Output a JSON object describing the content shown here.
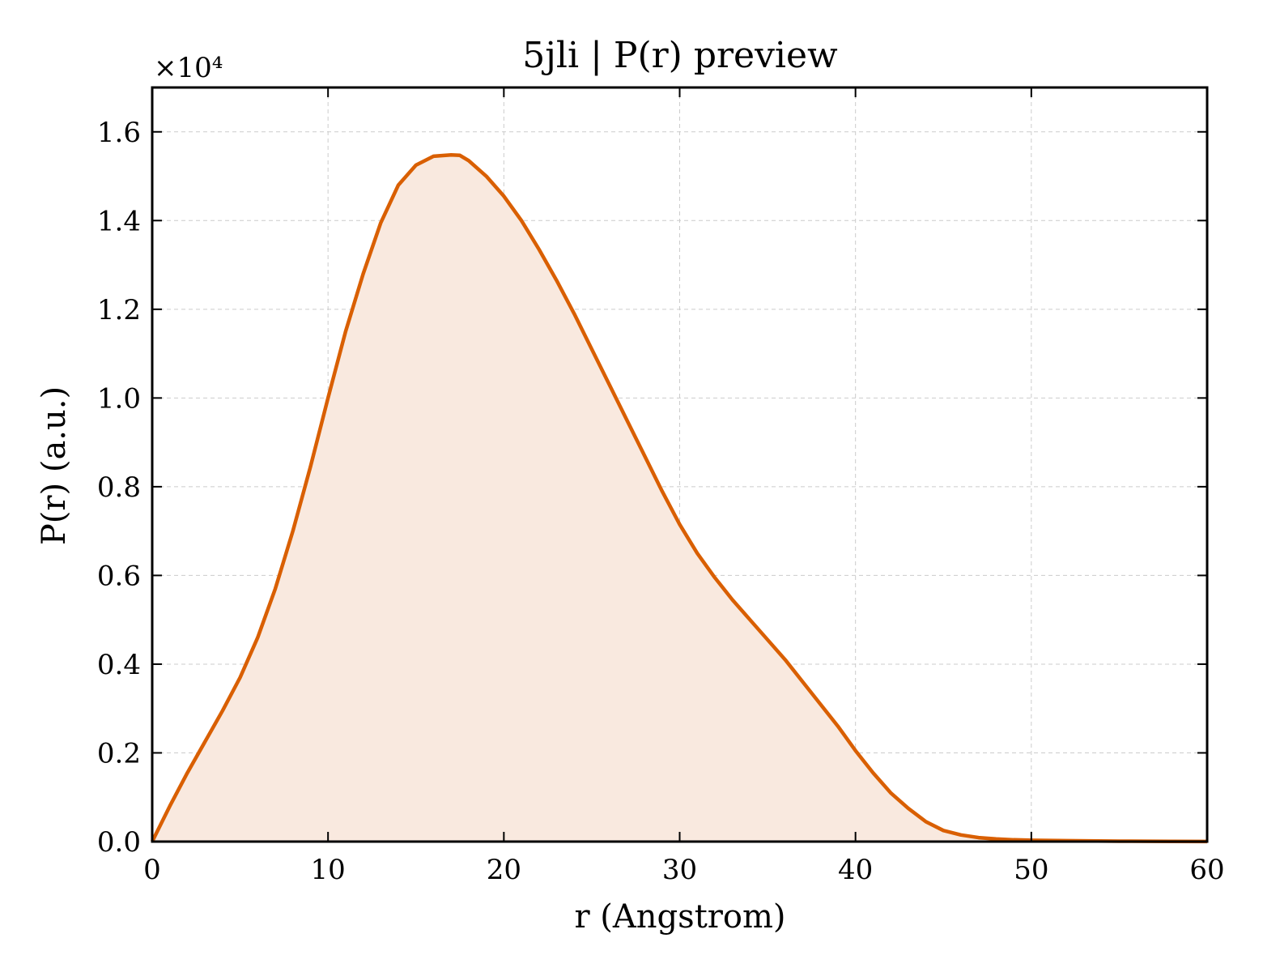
{
  "chart_data": {
    "type": "area",
    "title": "5jli | P(r) preview",
    "xlabel": "r (Angstrom)",
    "ylabel": "P(r) (a.u.)",
    "y_scale_label": "×10⁴",
    "xlim": [
      0,
      60
    ],
    "ylim": [
      0,
      1.7
    ],
    "x_ticks": [
      0,
      10,
      20,
      30,
      40,
      50,
      60
    ],
    "x_tick_labels": [
      "0",
      "10",
      "20",
      "30",
      "40",
      "50",
      "60"
    ],
    "y_ticks": [
      0.0,
      0.2,
      0.4,
      0.6,
      0.8,
      1.0,
      1.2,
      1.4,
      1.6
    ],
    "y_tick_labels": [
      "0.0",
      "0.2",
      "0.4",
      "0.6",
      "0.8",
      "1.0",
      "1.2",
      "1.4",
      "1.6"
    ],
    "grid": true,
    "line_color": "#d95f02",
    "fill_color": "#f9e9df",
    "series": [
      {
        "x": [
          0,
          1,
          2,
          3,
          4,
          5,
          6,
          7,
          8,
          9,
          10,
          11,
          12,
          13,
          14,
          15,
          16,
          17,
          17.5,
          18,
          19,
          20,
          21,
          22,
          23,
          24,
          25,
          26,
          27,
          28,
          29,
          30,
          31,
          32,
          33,
          34,
          35,
          36,
          37,
          38,
          39,
          40,
          41,
          42,
          43,
          44,
          45,
          46,
          47,
          48,
          49,
          50,
          52,
          55,
          58,
          60
        ],
        "y": [
          0.0,
          0.08,
          0.155,
          0.225,
          0.295,
          0.37,
          0.46,
          0.57,
          0.7,
          0.845,
          1.0,
          1.15,
          1.28,
          1.395,
          1.48,
          1.525,
          1.545,
          1.548,
          1.547,
          1.535,
          1.5,
          1.455,
          1.4,
          1.335,
          1.265,
          1.19,
          1.11,
          1.03,
          0.95,
          0.87,
          0.79,
          0.715,
          0.65,
          0.595,
          0.545,
          0.5,
          0.455,
          0.41,
          0.36,
          0.31,
          0.26,
          0.205,
          0.155,
          0.11,
          0.075,
          0.045,
          0.025,
          0.015,
          0.009,
          0.006,
          0.004,
          0.003,
          0.002,
          0.001,
          0.0005,
          0.0003
        ]
      }
    ]
  }
}
